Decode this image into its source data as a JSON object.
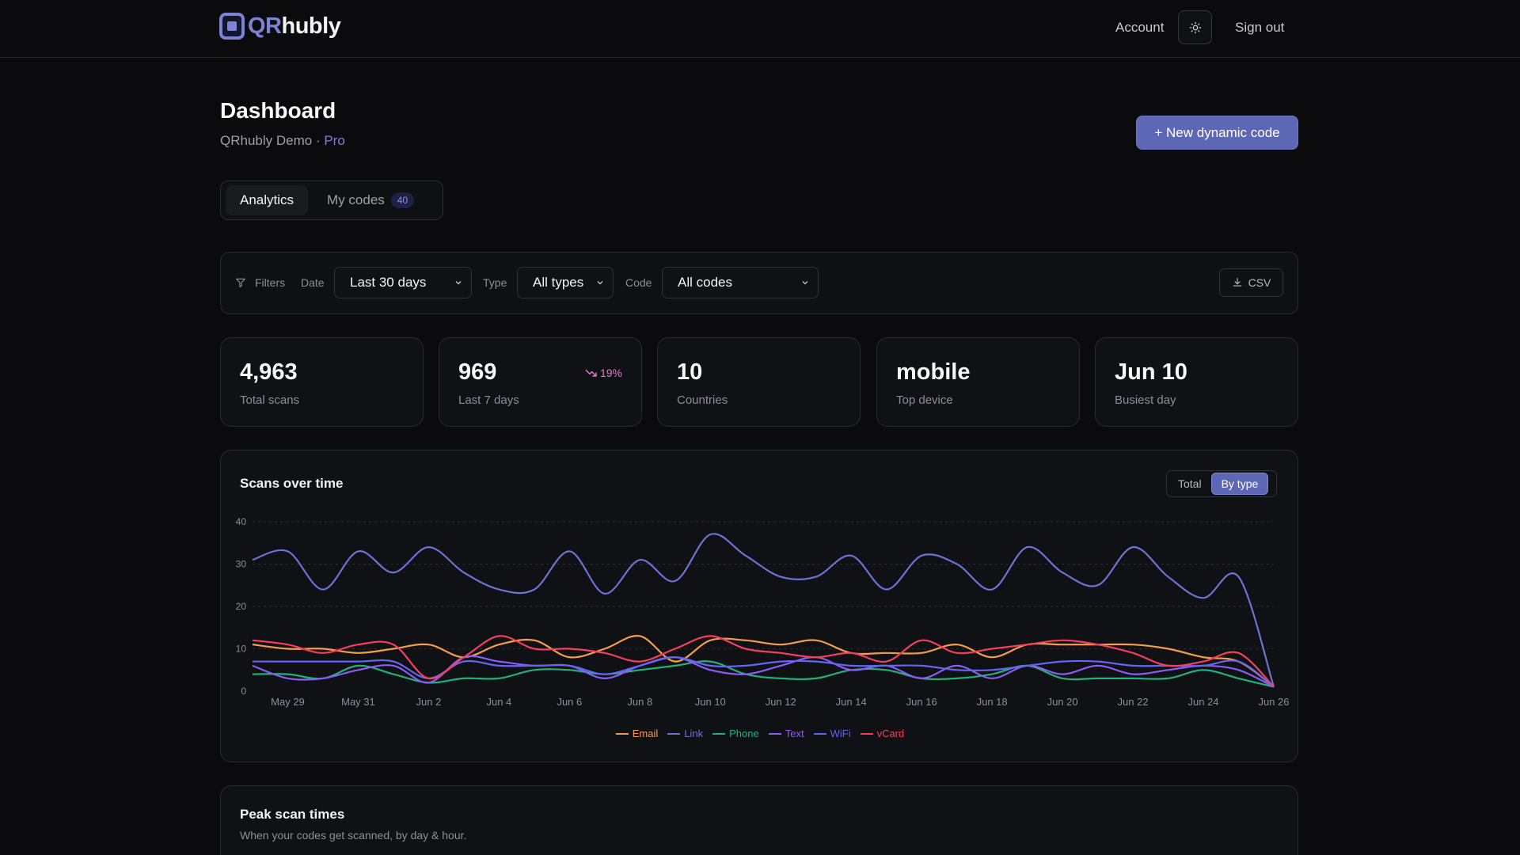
{
  "app": {
    "logo_qr": "QR",
    "logo_rest": "hubly"
  },
  "topnav": {
    "account": "Account",
    "sign_out": "Sign out",
    "theme_icon": "sun-icon"
  },
  "header": {
    "title": "Dashboard",
    "org": "QRhubly Demo",
    "separator": " · ",
    "plan": "Pro",
    "new_button": "+ New dynamic code"
  },
  "tabs": [
    {
      "label": "Analytics",
      "active": true
    },
    {
      "label": "My codes",
      "badge": "40",
      "active": false
    }
  ],
  "filters": {
    "label": "Filters",
    "date_label": "Date",
    "date_value": "Last 30 days",
    "type_label": "Type",
    "type_value": "All types",
    "code_label": "Code",
    "code_value": "All codes",
    "csv_label": "CSV"
  },
  "stats": [
    {
      "value": "4,963",
      "label": "Total scans"
    },
    {
      "value": "969",
      "label": "Last 7 days",
      "trend": "19%"
    },
    {
      "value": "10",
      "label": "Countries"
    },
    {
      "value": "mobile",
      "label": "Top device"
    },
    {
      "value": "Jun 10",
      "label": "Busiest day"
    }
  ],
  "chart": {
    "title": "Scans over time",
    "toggle_total": "Total",
    "toggle_by_type": "By type"
  },
  "chart_data": {
    "type": "line",
    "title": "Scans over time",
    "xlabel": "",
    "ylabel": "",
    "ylim": [
      0,
      40
    ],
    "y_ticks": [
      "0",
      "10",
      "20",
      "30",
      "40"
    ],
    "x_tick_labels": [
      "May 29",
      "May 31",
      "Jun 2",
      "Jun 4",
      "Jun 6",
      "Jun 8",
      "Jun 10",
      "Jun 12",
      "Jun 14",
      "Jun 16",
      "Jun 18",
      "Jun 20",
      "Jun 22",
      "Jun 24",
      "Jun 26"
    ],
    "x": [
      "May 28",
      "May 29",
      "May 30",
      "May 31",
      "Jun 1",
      "Jun 2",
      "Jun 3",
      "Jun 4",
      "Jun 5",
      "Jun 6",
      "Jun 7",
      "Jun 8",
      "Jun 9",
      "Jun 10",
      "Jun 11",
      "Jun 12",
      "Jun 13",
      "Jun 14",
      "Jun 15",
      "Jun 16",
      "Jun 17",
      "Jun 18",
      "Jun 19",
      "Jun 20",
      "Jun 21",
      "Jun 22",
      "Jun 23",
      "Jun 24",
      "Jun 25",
      "Jun 26"
    ],
    "grid": true,
    "legend_position": "bottom-center",
    "series": [
      {
        "name": "Email",
        "color": "#f59e4a",
        "values": [
          11,
          10,
          10,
          9,
          10,
          11,
          8,
          11,
          12,
          8,
          10,
          13,
          7,
          12,
          12,
          11,
          12,
          9,
          9,
          9,
          11,
          8,
          11,
          11,
          11,
          11,
          10,
          8,
          7,
          1
        ]
      },
      {
        "name": "Link",
        "color": "#6b73d4",
        "values": [
          31,
          33,
          24,
          33,
          28,
          34,
          28,
          24,
          24,
          33,
          23,
          31,
          26,
          37,
          32,
          27,
          27,
          32,
          24,
          32,
          30,
          24,
          34,
          28,
          25,
          34,
          27,
          22,
          27,
          1
        ]
      },
      {
        "name": "Phone",
        "color": "#22b07d",
        "values": [
          4,
          4,
          3,
          6,
          4,
          2,
          3,
          3,
          5,
          5,
          4,
          5,
          6,
          7,
          4,
          3,
          3,
          5,
          5,
          3,
          3,
          4,
          6,
          3,
          3,
          3,
          3,
          5,
          3,
          1
        ]
      },
      {
        "name": "Text",
        "color": "#8b5cf6",
        "values": [
          6,
          3,
          3,
          5,
          6,
          2,
          8,
          7,
          6,
          6,
          3,
          6,
          8,
          5,
          4,
          6,
          8,
          5,
          6,
          3,
          6,
          3,
          6,
          4,
          6,
          4,
          5,
          6,
          5,
          1
        ]
      },
      {
        "name": "WiFi",
        "color": "#6366f1",
        "values": [
          7,
          7,
          7,
          7,
          7,
          3,
          7,
          6,
          6,
          6,
          4,
          6,
          8,
          6,
          6,
          7,
          7,
          6,
          6,
          6,
          5,
          5,
          6,
          7,
          7,
          6,
          6,
          6,
          7,
          1
        ]
      },
      {
        "name": "vCard",
        "color": "#f43f5e",
        "values": [
          12,
          11,
          9,
          11,
          11,
          3,
          8,
          13,
          10,
          10,
          9,
          7,
          10,
          13,
          10,
          9,
          8,
          9,
          7,
          12,
          9,
          10,
          11,
          12,
          11,
          9,
          6,
          7,
          9,
          1
        ]
      }
    ]
  },
  "peak": {
    "title": "Peak scan times",
    "subtitle": "When your codes get scanned, by day & hour."
  }
}
